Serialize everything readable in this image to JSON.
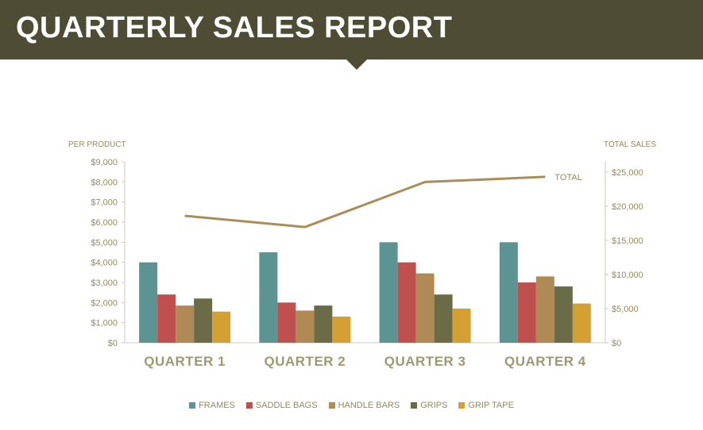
{
  "header": {
    "title": "QUARTERLY SALES REPORT"
  },
  "colors": {
    "banner": "#4f4c36",
    "series": [
      "#5b9493",
      "#c0504d",
      "#b08a55",
      "#6b6b48",
      "#d5a033"
    ],
    "total_line": "#ac8c57",
    "axis_text": "#948a5f"
  },
  "chart_data": {
    "type": "bar",
    "categories": [
      "QUARTER 1",
      "QUARTER 2",
      "QUARTER 3",
      "QUARTER 4"
    ],
    "series": [
      {
        "name": "FRAMES",
        "values": [
          4000,
          4500,
          5000,
          5000
        ]
      },
      {
        "name": "SADDLE BAGS",
        "values": [
          2400,
          2000,
          4000,
          3000
        ]
      },
      {
        "name": "HANDLE BARS",
        "values": [
          1850,
          1600,
          3450,
          3300
        ]
      },
      {
        "name": "GRIPS",
        "values": [
          2200,
          1850,
          2400,
          2800
        ]
      },
      {
        "name": "GRIP TAPE",
        "values": [
          1550,
          1300,
          1700,
          1950
        ]
      }
    ],
    "line_series": {
      "name": "TOTAL",
      "values": [
        18600,
        16950,
        23550,
        24300
      ],
      "axis": "right"
    },
    "left_axis": {
      "title": "PER PRODUCT",
      "ylim": [
        0,
        9000
      ],
      "ticks": [
        0,
        1000,
        2000,
        3000,
        4000,
        5000,
        6000,
        7000,
        8000,
        9000
      ],
      "tick_labels": [
        "$0",
        "$1,000",
        "$2,000",
        "$3,000",
        "$4,000",
        "$5,000",
        "$6,000",
        "$7,000",
        "$8,000",
        "$9,000"
      ]
    },
    "right_axis": {
      "title": "TOTAL SALES",
      "ylim": [
        0,
        26500
      ],
      "ticks": [
        0,
        5000,
        10000,
        15000,
        20000,
        25000
      ],
      "tick_labels": [
        "$0",
        "$5,000",
        "$10,000",
        "$15,000",
        "$20,000",
        "$25,000"
      ]
    },
    "grid": false,
    "legend_position": "bottom"
  }
}
